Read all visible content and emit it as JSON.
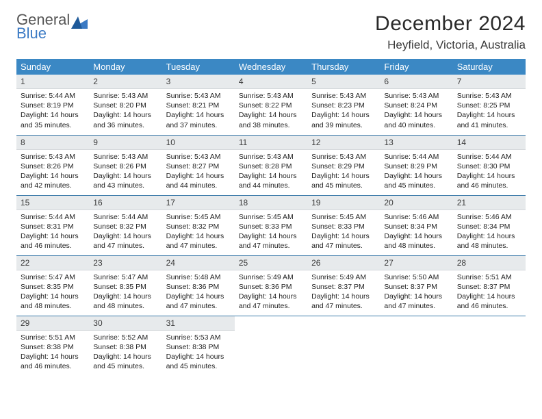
{
  "logo": {
    "word1": "General",
    "word2": "Blue"
  },
  "header": {
    "month_title": "December 2024",
    "location": "Heyfield, Victoria, Australia"
  },
  "calendar": {
    "day_headers": [
      "Sunday",
      "Monday",
      "Tuesday",
      "Wednesday",
      "Thursday",
      "Friday",
      "Saturday"
    ],
    "colors": {
      "header_bg": "#3b88c4",
      "header_text": "#ffffff",
      "daynum_bg": "#e7eaec",
      "row_border": "#3b7aaa",
      "page_bg": "#ffffff",
      "logo_accent": "#3b7ac4"
    },
    "weeks": [
      [
        {
          "n": "1",
          "sunrise": "5:44 AM",
          "sunset": "8:19 PM",
          "dl_h": "14",
          "dl_m": "35"
        },
        {
          "n": "2",
          "sunrise": "5:43 AM",
          "sunset": "8:20 PM",
          "dl_h": "14",
          "dl_m": "36"
        },
        {
          "n": "3",
          "sunrise": "5:43 AM",
          "sunset": "8:21 PM",
          "dl_h": "14",
          "dl_m": "37"
        },
        {
          "n": "4",
          "sunrise": "5:43 AM",
          "sunset": "8:22 PM",
          "dl_h": "14",
          "dl_m": "38"
        },
        {
          "n": "5",
          "sunrise": "5:43 AM",
          "sunset": "8:23 PM",
          "dl_h": "14",
          "dl_m": "39"
        },
        {
          "n": "6",
          "sunrise": "5:43 AM",
          "sunset": "8:24 PM",
          "dl_h": "14",
          "dl_m": "40"
        },
        {
          "n": "7",
          "sunrise": "5:43 AM",
          "sunset": "8:25 PM",
          "dl_h": "14",
          "dl_m": "41"
        }
      ],
      [
        {
          "n": "8",
          "sunrise": "5:43 AM",
          "sunset": "8:26 PM",
          "dl_h": "14",
          "dl_m": "42"
        },
        {
          "n": "9",
          "sunrise": "5:43 AM",
          "sunset": "8:26 PM",
          "dl_h": "14",
          "dl_m": "43"
        },
        {
          "n": "10",
          "sunrise": "5:43 AM",
          "sunset": "8:27 PM",
          "dl_h": "14",
          "dl_m": "44"
        },
        {
          "n": "11",
          "sunrise": "5:43 AM",
          "sunset": "8:28 PM",
          "dl_h": "14",
          "dl_m": "44"
        },
        {
          "n": "12",
          "sunrise": "5:43 AM",
          "sunset": "8:29 PM",
          "dl_h": "14",
          "dl_m": "45"
        },
        {
          "n": "13",
          "sunrise": "5:44 AM",
          "sunset": "8:29 PM",
          "dl_h": "14",
          "dl_m": "45"
        },
        {
          "n": "14",
          "sunrise": "5:44 AM",
          "sunset": "8:30 PM",
          "dl_h": "14",
          "dl_m": "46"
        }
      ],
      [
        {
          "n": "15",
          "sunrise": "5:44 AM",
          "sunset": "8:31 PM",
          "dl_h": "14",
          "dl_m": "46"
        },
        {
          "n": "16",
          "sunrise": "5:44 AM",
          "sunset": "8:32 PM",
          "dl_h": "14",
          "dl_m": "47"
        },
        {
          "n": "17",
          "sunrise": "5:45 AM",
          "sunset": "8:32 PM",
          "dl_h": "14",
          "dl_m": "47"
        },
        {
          "n": "18",
          "sunrise": "5:45 AM",
          "sunset": "8:33 PM",
          "dl_h": "14",
          "dl_m": "47"
        },
        {
          "n": "19",
          "sunrise": "5:45 AM",
          "sunset": "8:33 PM",
          "dl_h": "14",
          "dl_m": "47"
        },
        {
          "n": "20",
          "sunrise": "5:46 AM",
          "sunset": "8:34 PM",
          "dl_h": "14",
          "dl_m": "48"
        },
        {
          "n": "21",
          "sunrise": "5:46 AM",
          "sunset": "8:34 PM",
          "dl_h": "14",
          "dl_m": "48"
        }
      ],
      [
        {
          "n": "22",
          "sunrise": "5:47 AM",
          "sunset": "8:35 PM",
          "dl_h": "14",
          "dl_m": "48"
        },
        {
          "n": "23",
          "sunrise": "5:47 AM",
          "sunset": "8:35 PM",
          "dl_h": "14",
          "dl_m": "48"
        },
        {
          "n": "24",
          "sunrise": "5:48 AM",
          "sunset": "8:36 PM",
          "dl_h": "14",
          "dl_m": "47"
        },
        {
          "n": "25",
          "sunrise": "5:49 AM",
          "sunset": "8:36 PM",
          "dl_h": "14",
          "dl_m": "47"
        },
        {
          "n": "26",
          "sunrise": "5:49 AM",
          "sunset": "8:37 PM",
          "dl_h": "14",
          "dl_m": "47"
        },
        {
          "n": "27",
          "sunrise": "5:50 AM",
          "sunset": "8:37 PM",
          "dl_h": "14",
          "dl_m": "47"
        },
        {
          "n": "28",
          "sunrise": "5:51 AM",
          "sunset": "8:37 PM",
          "dl_h": "14",
          "dl_m": "46"
        }
      ],
      [
        {
          "n": "29",
          "sunrise": "5:51 AM",
          "sunset": "8:38 PM",
          "dl_h": "14",
          "dl_m": "46"
        },
        {
          "n": "30",
          "sunrise": "5:52 AM",
          "sunset": "8:38 PM",
          "dl_h": "14",
          "dl_m": "45"
        },
        {
          "n": "31",
          "sunrise": "5:53 AM",
          "sunset": "8:38 PM",
          "dl_h": "14",
          "dl_m": "45"
        },
        null,
        null,
        null,
        null
      ]
    ],
    "labels": {
      "sunrise_prefix": "Sunrise: ",
      "sunset_prefix": "Sunset: ",
      "daylight_prefix": "Daylight: ",
      "hours_word": " hours",
      "and_word": "and ",
      "minutes_word": " minutes."
    }
  }
}
